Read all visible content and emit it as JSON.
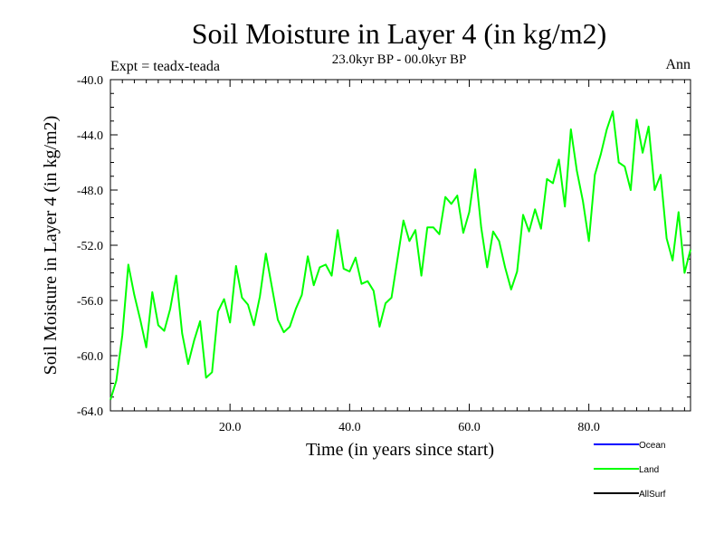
{
  "chart_data": {
    "type": "line",
    "title": "Soil Moisture in Layer 4 (in kg/m2)",
    "subtitle": "23.0kyr BP - 00.0kyr BP",
    "annotation_left": "Expt = teadx-teada",
    "annotation_right": "Ann",
    "xlabel": "Time (in years since start)",
    "ylabel": "Soil Moisture in Layer 4 (in kg/m2)",
    "xlim": [
      0,
      97
    ],
    "ylim": [
      -64,
      -40
    ],
    "xticks": [
      20,
      40,
      60,
      80
    ],
    "xtick_labels": [
      "20.0",
      "40.0",
      "60.0",
      "80.0"
    ],
    "yticks": [
      -64,
      -60,
      -56,
      -52,
      -48,
      -44,
      -40
    ],
    "ytick_labels": [
      "-64.0",
      "-60.0",
      "-56.0",
      "-52.0",
      "-48.0",
      "-44.0",
      "-40.0"
    ],
    "legend_position": "bottom-right",
    "legend": [
      {
        "name": "Ocean",
        "color": "#0000ff"
      },
      {
        "name": "Land",
        "color": "#00ff00"
      },
      {
        "name": "AllSurf",
        "color": "#000000"
      }
    ],
    "series": [
      {
        "name": "Land",
        "color": "#00ff00",
        "x": [
          0,
          1,
          2,
          3,
          4,
          5,
          6,
          7,
          8,
          9,
          10,
          11,
          12,
          13,
          14,
          15,
          16,
          17,
          18,
          19,
          20,
          21,
          22,
          23,
          24,
          25,
          26,
          27,
          28,
          29,
          30,
          31,
          32,
          33,
          34,
          35,
          36,
          37,
          38,
          39,
          40,
          41,
          42,
          43,
          44,
          45,
          46,
          47,
          48,
          49,
          50,
          51,
          52,
          53,
          54,
          55,
          56,
          57,
          58,
          59,
          60,
          61,
          62,
          63,
          64,
          65,
          66,
          67,
          68,
          69,
          70,
          71,
          72,
          73,
          74,
          75,
          76,
          77,
          78,
          79,
          80,
          81,
          82,
          83,
          84,
          85,
          86,
          87,
          88,
          89,
          90,
          91,
          92,
          93,
          94,
          95,
          96,
          97
        ],
        "values": [
          -63.2,
          -61.8,
          -58.5,
          -53.4,
          -55.6,
          -57.4,
          -59.4,
          -55.4,
          -57.8,
          -58.2,
          -56.6,
          -54.2,
          -58.4,
          -60.6,
          -58.9,
          -57.5,
          -61.6,
          -61.2,
          -56.8,
          -55.9,
          -57.6,
          -53.5,
          -55.8,
          -56.3,
          -57.8,
          -55.7,
          -52.6,
          -55.0,
          -57.4,
          -58.3,
          -57.9,
          -56.6,
          -55.6,
          -52.8,
          -54.9,
          -53.6,
          -53.4,
          -54.2,
          -50.9,
          -53.7,
          -53.9,
          -52.9,
          -54.8,
          -54.6,
          -55.3,
          -57.9,
          -56.2,
          -55.8,
          -53.0,
          -50.2,
          -51.7,
          -50.9,
          -54.2,
          -50.7,
          -50.7,
          -51.2,
          -48.5,
          -49.0,
          -48.4,
          -51.1,
          -49.6,
          -46.5,
          -50.7,
          -53.6,
          -51.0,
          -51.7,
          -53.6,
          -55.2,
          -53.9,
          -49.8,
          -51.0,
          -49.4,
          -50.8,
          -47.2,
          -47.5,
          -45.8,
          -49.2,
          -43.6,
          -46.6,
          -48.8,
          -51.7,
          -46.9,
          -45.4,
          -43.6,
          -42.3,
          -46.0,
          -46.3,
          -48.0,
          -42.9,
          -45.3,
          -43.4,
          -48.0,
          -46.9,
          -51.5,
          -53.1,
          -49.6,
          -54.0,
          -52.3
        ]
      }
    ]
  }
}
